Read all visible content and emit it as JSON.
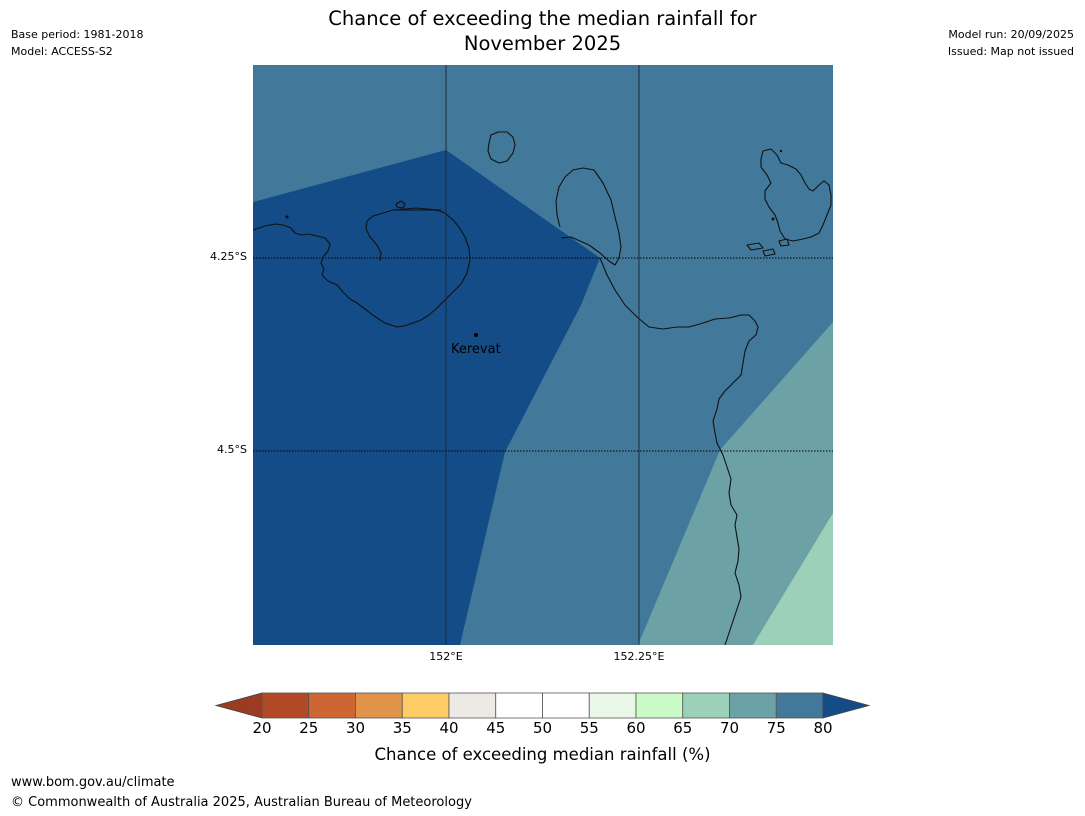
{
  "title": {
    "line1": "Chance of exceeding the median rainfall for",
    "line2": "November 2025"
  },
  "meta_left": {
    "base_period": "Base period: 1981-2018",
    "model": "Model: ACCESS-S2"
  },
  "meta_right": {
    "model_run": "Model run: 20/09/2025",
    "issued": "Issued: Map not issued"
  },
  "map": {
    "latitude_labels": [
      "4.25°S",
      "4.5°S"
    ],
    "longitude_labels": [
      "152°E",
      "152.25°E"
    ],
    "town": {
      "name": "Kerevat"
    },
    "shade_colors": {
      "band_75_80": "#42799A",
      "band_above_80": "#134C87",
      "band_70_75": "#6CA2A6",
      "band_65_70": "#9CD0B9"
    }
  },
  "colorbar": {
    "ticks": [
      "20",
      "25",
      "30",
      "35",
      "40",
      "45",
      "50",
      "55",
      "60",
      "65",
      "70",
      "75",
      "80"
    ],
    "segment_colors": [
      "#B24A27",
      "#CD6632",
      "#E09449",
      "#FECC67",
      "#EDE9E5",
      "#FFFFFF",
      "#FFFFFF",
      "#E9F7E9",
      "#CBFCC8",
      "#9CD0B9",
      "#6CA2A6",
      "#42799A"
    ],
    "under_color": "#9A3B22",
    "over_color": "#134C87",
    "label": "Chance of exceeding median rainfall (%)"
  },
  "footer": {
    "url": "www.bom.gov.au/climate",
    "copyright": "© Commonwealth of Australia 2025, Australian Bureau of Meteorology"
  }
}
